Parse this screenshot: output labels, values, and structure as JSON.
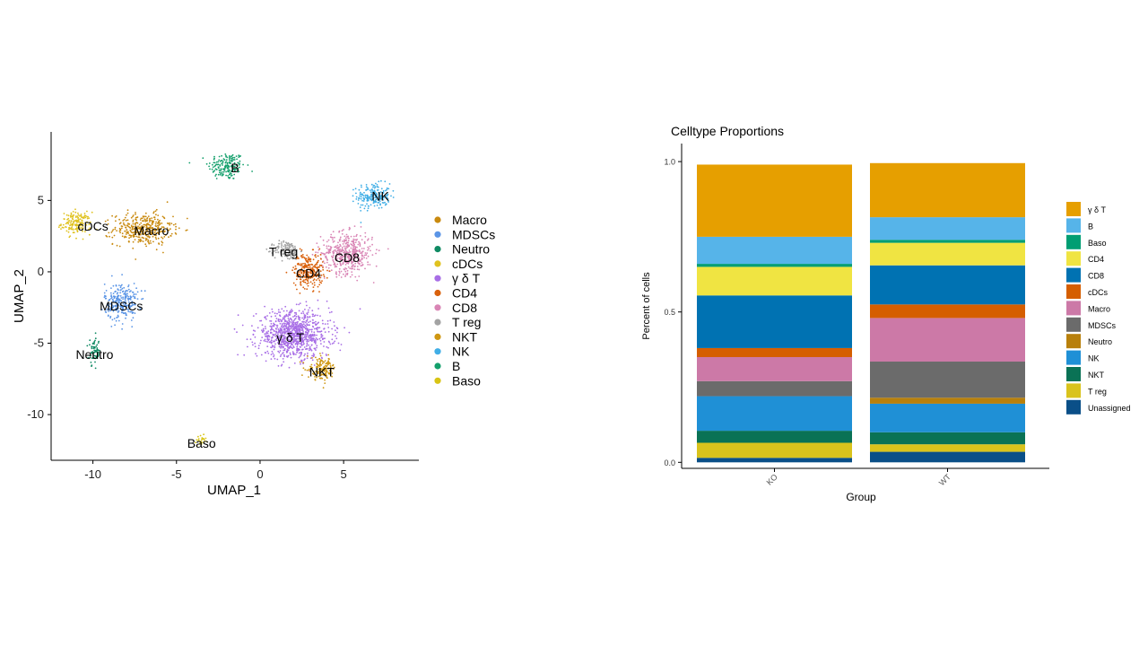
{
  "chart_data": [
    {
      "type": "scatter",
      "title": "",
      "xlabel": "UMAP_1",
      "ylabel": "UMAP_2",
      "xlim": [
        -12.5,
        9.5
      ],
      "ylim": [
        -13.2,
        9.8
      ],
      "x_ticks": [
        -10,
        -5,
        0,
        5
      ],
      "y_ticks": [
        -10,
        -5,
        0,
        5
      ],
      "legend": {
        "position": "right",
        "entries": [
          {
            "label": "Macro",
            "color": "#c98a0f"
          },
          {
            "label": "MDSCs",
            "color": "#5b95e6"
          },
          {
            "label": "Neutro",
            "color": "#0f8a63"
          },
          {
            "label": "cDCs",
            "color": "#e0c21f"
          },
          {
            "label": "γ δ T",
            "color": "#a86ee6"
          },
          {
            "label": "CD4",
            "color": "#d9610c"
          },
          {
            "label": "CD8",
            "color": "#d985b5"
          },
          {
            "label": "T reg",
            "color": "#a3a3a3"
          },
          {
            "label": "NKT",
            "color": "#cf9712"
          },
          {
            "label": "NK",
            "color": "#40aee6"
          },
          {
            "label": "B",
            "color": "#14a06c"
          },
          {
            "label": "Baso",
            "color": "#d8c414"
          }
        ]
      },
      "clusters": [
        {
          "label": "B",
          "x": -2.0,
          "y": 7.4,
          "sx": 1.0,
          "sy": 0.9,
          "n": 170,
          "color": "#14a06c"
        },
        {
          "label": "NK",
          "x": 6.8,
          "y": 5.3,
          "sx": 0.9,
          "sy": 0.8,
          "n": 200,
          "color": "#40aee6"
        },
        {
          "label": "cDCs",
          "x": -11.0,
          "y": 3.4,
          "sx": 0.8,
          "sy": 0.7,
          "n": 160,
          "color": "#e0c21f"
        },
        {
          "label": "Macro",
          "x": -7.0,
          "y": 3.0,
          "sx": 1.6,
          "sy": 1.0,
          "n": 380,
          "color": "#c98a0f"
        },
        {
          "label": "T reg",
          "x": 1.6,
          "y": 1.5,
          "sx": 0.7,
          "sy": 0.6,
          "n": 140,
          "color": "#a3a3a3"
        },
        {
          "label": "CD8",
          "x": 5.2,
          "y": 1.3,
          "sx": 1.4,
          "sy": 1.3,
          "n": 460,
          "color": "#d985b5"
        },
        {
          "label": "CD4",
          "x": 2.9,
          "y": 0.1,
          "sx": 0.8,
          "sy": 1.1,
          "n": 260,
          "color": "#d9610c"
        },
        {
          "label": "MDSCs",
          "x": -8.3,
          "y": -2.1,
          "sx": 0.9,
          "sy": 1.2,
          "n": 260,
          "color": "#5b95e6"
        },
        {
          "label": "γ δ T",
          "x": 2.0,
          "y": -4.4,
          "sx": 2.0,
          "sy": 1.5,
          "n": 950,
          "color": "#a86ee6"
        },
        {
          "label": "Neutro",
          "x": -9.9,
          "y": -5.6,
          "sx": 0.3,
          "sy": 0.8,
          "n": 70,
          "color": "#0f8a63"
        },
        {
          "label": "NKT",
          "x": 3.7,
          "y": -6.8,
          "sx": 0.8,
          "sy": 0.7,
          "n": 150,
          "color": "#cf9712"
        },
        {
          "label": "Baso",
          "x": -3.5,
          "y": -11.8,
          "sx": 0.2,
          "sy": 0.3,
          "n": 25,
          "color": "#d8c414"
        }
      ],
      "labels": [
        {
          "text": "B",
          "x": -1.5,
          "y": 7.3
        },
        {
          "text": "NK",
          "x": 7.2,
          "y": 5.3
        },
        {
          "text": "cDCs",
          "x": -10.0,
          "y": 3.2
        },
        {
          "text": "Macro",
          "x": -6.5,
          "y": 2.9
        },
        {
          "text": "T reg",
          "x": 1.4,
          "y": 1.4
        },
        {
          "text": "CD8",
          "x": 5.2,
          "y": 1.0
        },
        {
          "text": "CD4",
          "x": 2.9,
          "y": -0.1
        },
        {
          "text": "MDSCs",
          "x": -8.3,
          "y": -2.4
        },
        {
          "text": "γ δ T",
          "x": 1.8,
          "y": -4.6
        },
        {
          "text": "Neutro",
          "x": -9.9,
          "y": -5.8
        },
        {
          "text": "NKT",
          "x": 3.7,
          "y": -7.0
        },
        {
          "text": "Baso",
          "x": -3.5,
          "y": -12.0
        }
      ]
    },
    {
      "type": "bar",
      "stacked": true,
      "title": "Celltype Proportions",
      "xlabel": "Group",
      "ylabel": "Percent of cells",
      "categories": [
        "KO",
        "WT"
      ],
      "ylim": [
        -0.02,
        1.06
      ],
      "y_ticks": [
        "0.0",
        "0.5",
        "1.0"
      ],
      "legend_position": "right",
      "series": [
        {
          "name": "Unassigned",
          "color": "#0a4f88",
          "values": [
            0.015,
            0.035
          ]
        },
        {
          "name": "T reg",
          "color": "#d9c31c",
          "values": [
            0.05,
            0.025
          ]
        },
        {
          "name": "NKT",
          "color": "#0a7255",
          "values": [
            0.04,
            0.04
          ]
        },
        {
          "name": "NK",
          "color": "#1f90d6",
          "values": [
            0.115,
            0.095
          ]
        },
        {
          "name": "Neutro",
          "color": "#b8800c",
          "values": [
            0.0,
            0.02
          ]
        },
        {
          "name": "MDSCs",
          "color": "#6b6b6b",
          "values": [
            0.05,
            0.12
          ]
        },
        {
          "name": "Macro",
          "color": "#cc79a7",
          "values": [
            0.08,
            0.145
          ]
        },
        {
          "name": "cDCs",
          "color": "#d55e00",
          "values": [
            0.03,
            0.045
          ]
        },
        {
          "name": "CD8",
          "color": "#0072b2",
          "values": [
            0.175,
            0.13
          ]
        },
        {
          "name": "CD4",
          "color": "#f0e442",
          "values": [
            0.095,
            0.075
          ]
        },
        {
          "name": "Baso",
          "color": "#009e73",
          "values": [
            0.01,
            0.01
          ]
        },
        {
          "name": "B",
          "color": "#56b4e9",
          "values": [
            0.09,
            0.075
          ]
        },
        {
          "name": "γ δ T",
          "color": "#e69f00",
          "values": [
            0.24,
            0.18
          ]
        }
      ],
      "legend_order": [
        "γ δ T",
        "B",
        "Baso",
        "CD4",
        "CD8",
        "cDCs",
        "Macro",
        "MDSCs",
        "Neutro",
        "NK",
        "NKT",
        "T reg",
        "Unassigned"
      ]
    }
  ]
}
